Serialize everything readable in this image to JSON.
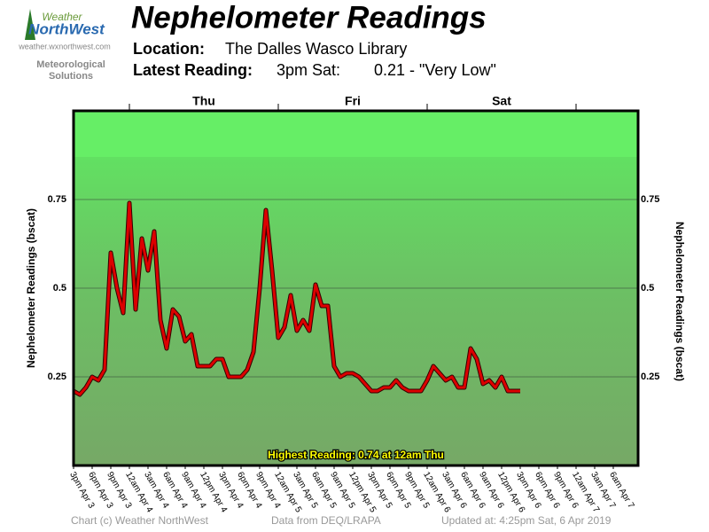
{
  "logo": {
    "name1": "Weather",
    "name2": "NorthWest",
    "url": "weather.wxnorthwest.com",
    "tagline": [
      "Meteorological",
      "Solutions"
    ]
  },
  "header": {
    "title": "Nephelometer Readings",
    "location_label": "Location:",
    "location": "The Dalles Wasco Library",
    "latest_label": "Latest Reading:",
    "latest_time": "3pm Sat:",
    "latest_value": "0.21 - \"Very Low\""
  },
  "chart_data": {
    "type": "line",
    "ylabel": "Nephelometer Readings (bscat)",
    "color": "#dd0000",
    "annotation": "Highest Reading: 0.74 at 12am Thu",
    "x": [
      0,
      1,
      2,
      3,
      4,
      5,
      6,
      7,
      8,
      9,
      10,
      11,
      12,
      13,
      14,
      15,
      16,
      17,
      18,
      19,
      20,
      21,
      22,
      23,
      24,
      25,
      26,
      27,
      28,
      29,
      30,
      31,
      32,
      33,
      34,
      35,
      36,
      37,
      38,
      39,
      40,
      41,
      42,
      43,
      44,
      45,
      46,
      47,
      48,
      49,
      50,
      51,
      52,
      53,
      54,
      55,
      56,
      57,
      58,
      59,
      60,
      61,
      62,
      63,
      64,
      65,
      66,
      67,
      68,
      69,
      70,
      71,
      72
    ],
    "values": [
      0.21,
      0.2,
      0.22,
      0.25,
      0.24,
      0.27,
      0.6,
      0.5,
      0.43,
      0.74,
      0.44,
      0.64,
      0.55,
      0.66,
      0.41,
      0.33,
      0.44,
      0.42,
      0.35,
      0.37,
      0.28,
      0.28,
      0.28,
      0.3,
      0.3,
      0.25,
      0.25,
      0.25,
      0.27,
      0.32,
      0.5,
      0.72,
      0.55,
      0.36,
      0.39,
      0.48,
      0.38,
      0.41,
      0.38,
      0.51,
      0.45,
      0.45,
      0.28,
      0.25,
      0.26,
      0.26,
      0.25,
      0.23,
      0.21,
      0.21,
      0.22,
      0.22,
      0.24,
      0.22,
      0.21,
      0.21,
      0.21,
      0.24,
      0.28,
      0.26,
      0.24,
      0.25,
      0.22,
      0.22,
      0.33,
      0.3,
      0.23,
      0.24,
      0.22,
      0.25,
      0.21,
      0.21,
      0.21
    ],
    "xlim": [
      0,
      91
    ],
    "ylim": [
      0,
      1
    ],
    "yticks": [
      0.25,
      0.5,
      0.75
    ],
    "grid": true,
    "days": [
      {
        "value": 21,
        "label": "Thu"
      },
      {
        "value": 45,
        "label": "Fri"
      },
      {
        "value": 69,
        "label": "Sat"
      }
    ],
    "day_ticks": [
      9,
      33,
      57,
      81
    ],
    "xticks": [
      {
        "value": 0,
        "label": "3pm Apr 3"
      },
      {
        "value": 3,
        "label": "6pm Apr 3"
      },
      {
        "value": 6,
        "label": "9pm Apr 3"
      },
      {
        "value": 9,
        "label": "12am Apr 4"
      },
      {
        "value": 12,
        "label": "3am Apr 4"
      },
      {
        "value": 15,
        "label": "6am Apr 4"
      },
      {
        "value": 18,
        "label": "9am Apr 4"
      },
      {
        "value": 21,
        "label": "12pm Apr 4"
      },
      {
        "value": 24,
        "label": "3pm Apr 4"
      },
      {
        "value": 27,
        "label": "6pm Apr 4"
      },
      {
        "value": 30,
        "label": "9pm Apr 4"
      },
      {
        "value": 33,
        "label": "12am Apr 5"
      },
      {
        "value": 36,
        "label": "3am Apr 5"
      },
      {
        "value": 39,
        "label": "6am Apr 5"
      },
      {
        "value": 42,
        "label": "9am Apr 5"
      },
      {
        "value": 45,
        "label": "12pm Apr 5"
      },
      {
        "value": 48,
        "label": "3pm Apr 5"
      },
      {
        "value": 51,
        "label": "6pm Apr 5"
      },
      {
        "value": 54,
        "label": "9pm Apr 5"
      },
      {
        "value": 57,
        "label": "12am Apr 6"
      },
      {
        "value": 60,
        "label": "3am Apr 6"
      },
      {
        "value": 63,
        "label": "6am Apr 6"
      },
      {
        "value": 66,
        "label": "9am Apr 6"
      },
      {
        "value": 69,
        "label": "12pm Apr 6"
      },
      {
        "value": 72,
        "label": "3pm Apr 6"
      },
      {
        "value": 75,
        "label": "6pm Apr 6"
      },
      {
        "value": 78,
        "label": "9pm Apr 6"
      },
      {
        "value": 81,
        "label": "12am Apr 7"
      },
      {
        "value": 84,
        "label": "3am Apr 7"
      },
      {
        "value": 87,
        "label": "6am Apr 7"
      }
    ]
  },
  "footer": {
    "credit": "Chart (c) Weather NorthWest",
    "source": "Data from DEQ/LRAPA",
    "updated": "Updated at: 4:25pm Sat, 6 Apr 2019"
  }
}
